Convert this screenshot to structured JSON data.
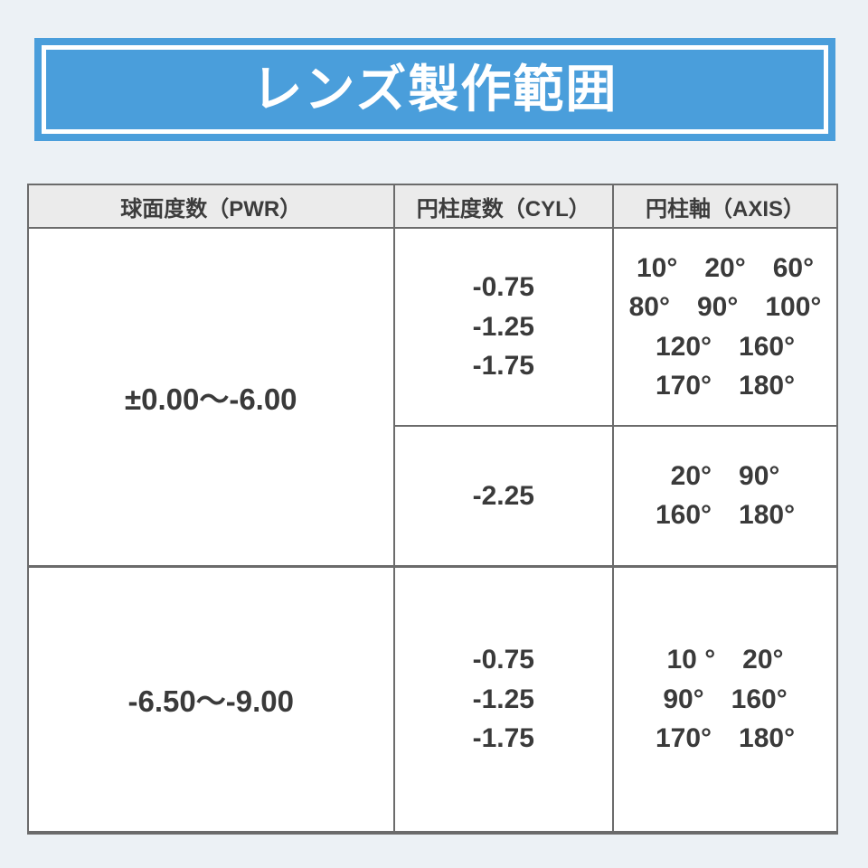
{
  "banner": {
    "title": "レンズ製作範囲"
  },
  "colors": {
    "page_background": "#ECF1F5",
    "banner_blue": "#4A9EDB",
    "banner_inner_border": "#FFFFFF",
    "banner_title_text": "#FFFFFF",
    "table_header_background": "#EBEBEB",
    "table_border": "#6B6B6B",
    "table_background": "#FFFFFF",
    "text": "#3A3A3A"
  },
  "table": {
    "headers": [
      "球面度数（PWR）",
      "円柱度数（CYL）",
      "円柱軸（AXIS）"
    ],
    "rows": [
      {
        "pwr": "±0.00〜-6.00",
        "subrows": [
          {
            "cyl": [
              "-0.75",
              "-1.25",
              "-1.75"
            ],
            "axis": [
              "10°　20°　60°",
              "80°　90°　100°",
              "120°　160°",
              "170°　180°"
            ]
          },
          {
            "cyl": [
              "-2.25"
            ],
            "axis": [
              "20°　90°",
              "160°　180°"
            ]
          }
        ]
      },
      {
        "pwr": "-6.50〜-9.00",
        "subrows": [
          {
            "cyl": [
              "-0.75",
              "-1.25",
              "-1.75"
            ],
            "axis": [
              "10 °　20°",
              "90°　160°",
              "170°　180°"
            ]
          }
        ]
      }
    ]
  }
}
